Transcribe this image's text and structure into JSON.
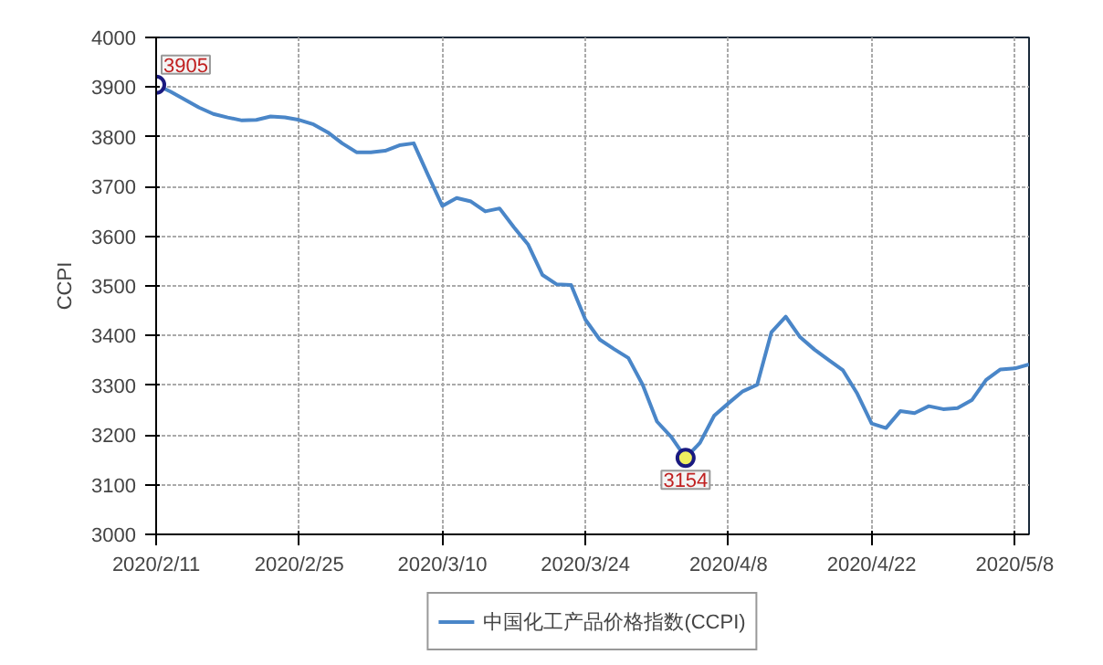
{
  "chart_data": {
    "type": "line",
    "ylabel": "CCPI",
    "categories": [
      "2020/2/11",
      null,
      null,
      null,
      null,
      null,
      null,
      null,
      null,
      null,
      "2020/2/25",
      null,
      null,
      null,
      null,
      null,
      null,
      null,
      null,
      null,
      "2020/3/10",
      null,
      null,
      null,
      null,
      null,
      null,
      null,
      null,
      null,
      "2020/3/24",
      null,
      null,
      null,
      null,
      null,
      null,
      null,
      null,
      null,
      "2020/4/8",
      null,
      null,
      null,
      null,
      null,
      null,
      null,
      null,
      null,
      "2020/4/22",
      null,
      null,
      null,
      null,
      null,
      null,
      null,
      null,
      null,
      "2020/5/8",
      null
    ],
    "series": [
      {
        "name": "中国化工产品价格指数(CCPI)",
        "color": "#4a86c8",
        "values": [
          3905,
          3891,
          3875,
          3859,
          3846,
          3839,
          3833,
          3834,
          3841,
          3839,
          3834,
          3825,
          3809,
          3787,
          3769,
          3769,
          3772,
          3783,
          3787,
          3723,
          3661,
          3677,
          3670,
          3650,
          3656,
          3618,
          3583,
          3522,
          3503,
          3502,
          3432,
          3392,
          3373,
          3355,
          3301,
          3227,
          3196,
          3154,
          3184,
          3239,
          3264,
          3288,
          3301,
          3407,
          3438,
          3397,
          3372,
          3351,
          3330,
          3283,
          3223,
          3214,
          3248,
          3244,
          3258,
          3252,
          3254,
          3270,
          3311,
          3332,
          3334,
          3342
        ]
      }
    ],
    "ylim": [
      3000,
      4000
    ],
    "yticks": [
      3000,
      3100,
      3200,
      3300,
      3400,
      3500,
      3600,
      3700,
      3800,
      3900,
      4000
    ],
    "grid": true,
    "legend": "bottom",
    "marker": "none",
    "line_style": "solid",
    "annotations": [
      {
        "text": "3905",
        "x": "2020/2/11",
        "y": 3905
      },
      {
        "text": "3154",
        "y": 3154
      }
    ]
  }
}
